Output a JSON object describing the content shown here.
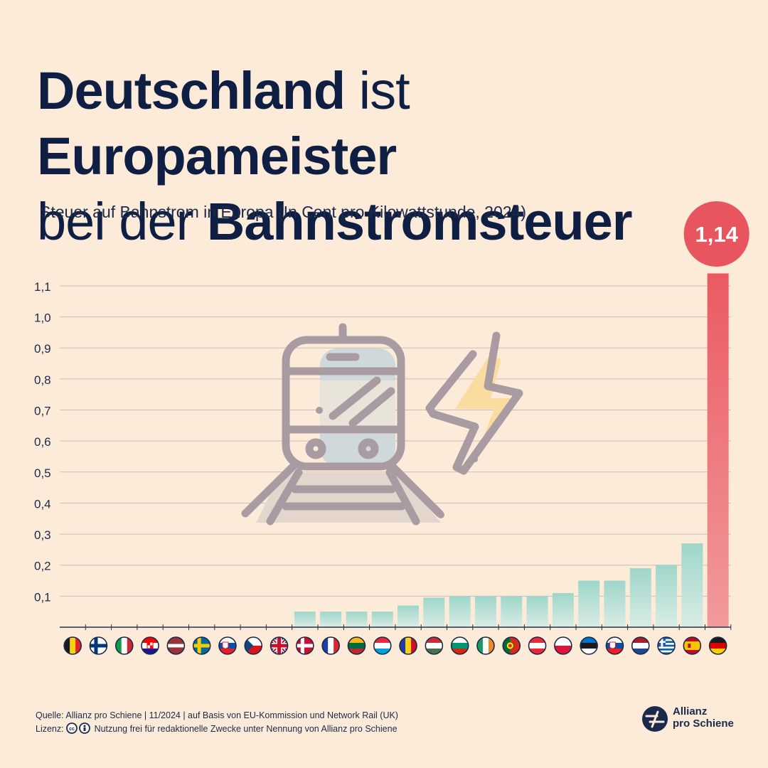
{
  "headline": {
    "line1_part1": "Deutschland",
    "line1_part2": " ist ",
    "line1_part3": "Europameister",
    "line2_part1": "bei der ",
    "line2_part2": "Bahnstromsteuer"
  },
  "subtitle": "Steuer auf Bahnstrom in Europa (In Cent pro Kilowattstunde, 2024)",
  "footer": {
    "source": "Quelle: Allianz pro Schiene | 11/2024 | auf Basis von EU-Kommission und Network Rail (UK)",
    "license_label": "Lizenz:",
    "license_text": "Nutzung frei für redaktionelle Zwecke unter Nennung von Allianz pro Schiene"
  },
  "logo": {
    "line1": "Allianz",
    "line2": "pro Schiene"
  },
  "colors": {
    "background": "#fdebd9",
    "bar_teal_top": "#9ed6c9",
    "bar_teal_bottom": "#d6ebe3",
    "bar_red_top": "#ea5a62",
    "bar_red_bottom": "#f19598",
    "highlight_circle": "#e8555e",
    "title": "#0f1f44"
  },
  "icons": [
    "train-icon",
    "lightning-icon"
  ],
  "chart_data": {
    "type": "bar",
    "categories": [
      "Belgien",
      "Finnland",
      "Italien",
      "Kroatien",
      "Lettland",
      "Schweden",
      "Slowakei",
      "Tschechien",
      "Vereinigtes Königreich",
      "Dänemark",
      "Frankreich",
      "Litauen",
      "Luxemburg",
      "Rumänien",
      "Ungarn",
      "Bulgarien",
      "Irland",
      "Portugal",
      "Österreich",
      "Polen",
      "Estland",
      "Slowenien",
      "Niederlande",
      "Griechenland",
      "Spanien",
      "Deutschland"
    ],
    "flags": [
      "be",
      "fi",
      "it",
      "hr",
      "lv",
      "se",
      "sk",
      "cz",
      "gb",
      "dk",
      "fr",
      "lt",
      "lu",
      "ro",
      "hu",
      "bg",
      "ie",
      "pt",
      "at",
      "pl",
      "ee",
      "si",
      "nl",
      "gr",
      "es",
      "de"
    ],
    "values": [
      0,
      0,
      0,
      0,
      0,
      0,
      0,
      0,
      0,
      0.05,
      0.05,
      0.05,
      0.05,
      0.07,
      0.095,
      0.1,
      0.1,
      0.1,
      0.1,
      0.11,
      0.15,
      0.15,
      0.19,
      0.2,
      0.27,
      1.14
    ],
    "highlight_index": 25,
    "highlight_label": "1,14",
    "ylim": [
      0,
      1.1
    ],
    "yticks": [
      0.1,
      0.2,
      0.3,
      0.4,
      0.5,
      0.6,
      0.7,
      0.8,
      0.9,
      1.0,
      1.1
    ],
    "ytick_labels": [
      "0,1",
      "0,2",
      "0,3",
      "0,4",
      "0,5",
      "0,6",
      "0,7",
      "0,8",
      "0,9",
      "1,0",
      "1,1"
    ],
    "grid": true,
    "xlabel": "",
    "ylabel": ""
  }
}
